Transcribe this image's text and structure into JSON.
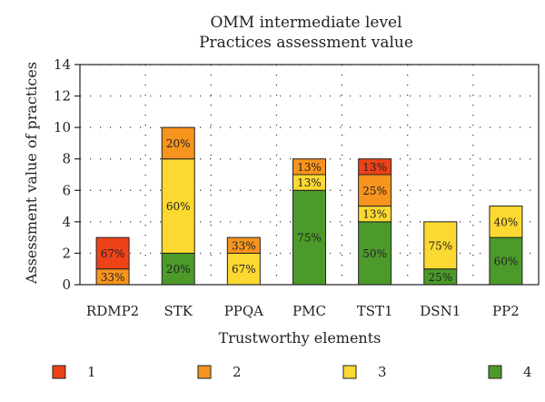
{
  "chart_data": {
    "type": "bar",
    "stacked": true,
    "title": [
      "OMM intermediate level",
      "Practices assessment value"
    ],
    "xlabel": "Trustworthy elements",
    "ylabel": "Assessment value of practices",
    "ylim": [
      0,
      14
    ],
    "yticks": [
      0,
      2,
      4,
      6,
      8,
      10,
      12,
      14
    ],
    "grid": "dotted",
    "legend_position": "bottom",
    "categories": [
      "RDMP2",
      "STK",
      "PPQA",
      "PMC",
      "TST1",
      "DSN1",
      "PP2"
    ],
    "series": [
      {
        "name": "4",
        "color": "#4c9a2a",
        "values": [
          0,
          2,
          0,
          6,
          4,
          1,
          3
        ],
        "labels": [
          "",
          "20%",
          "",
          "75%",
          "50%",
          "25%",
          "60%"
        ]
      },
      {
        "name": "3",
        "color": "#fcd930",
        "values": [
          0,
          6,
          2,
          1,
          1,
          3,
          2
        ],
        "labels": [
          "",
          "60%",
          "67%",
          "13%",
          "13%",
          "75%",
          "40%"
        ]
      },
      {
        "name": "2",
        "color": "#f7941d",
        "values": [
          1,
          2,
          1,
          1,
          2,
          0,
          0
        ],
        "labels": [
          "33%",
          "20%",
          "33%",
          "13%",
          "25%",
          "",
          ""
        ]
      },
      {
        "name": "1",
        "color": "#ee4218",
        "values": [
          2,
          0,
          0,
          0,
          1,
          0,
          0
        ],
        "labels": [
          "67%",
          "",
          "",
          "",
          "13%",
          "",
          ""
        ]
      }
    ],
    "legend_order": [
      "1",
      "2",
      "3",
      "4"
    ]
  }
}
